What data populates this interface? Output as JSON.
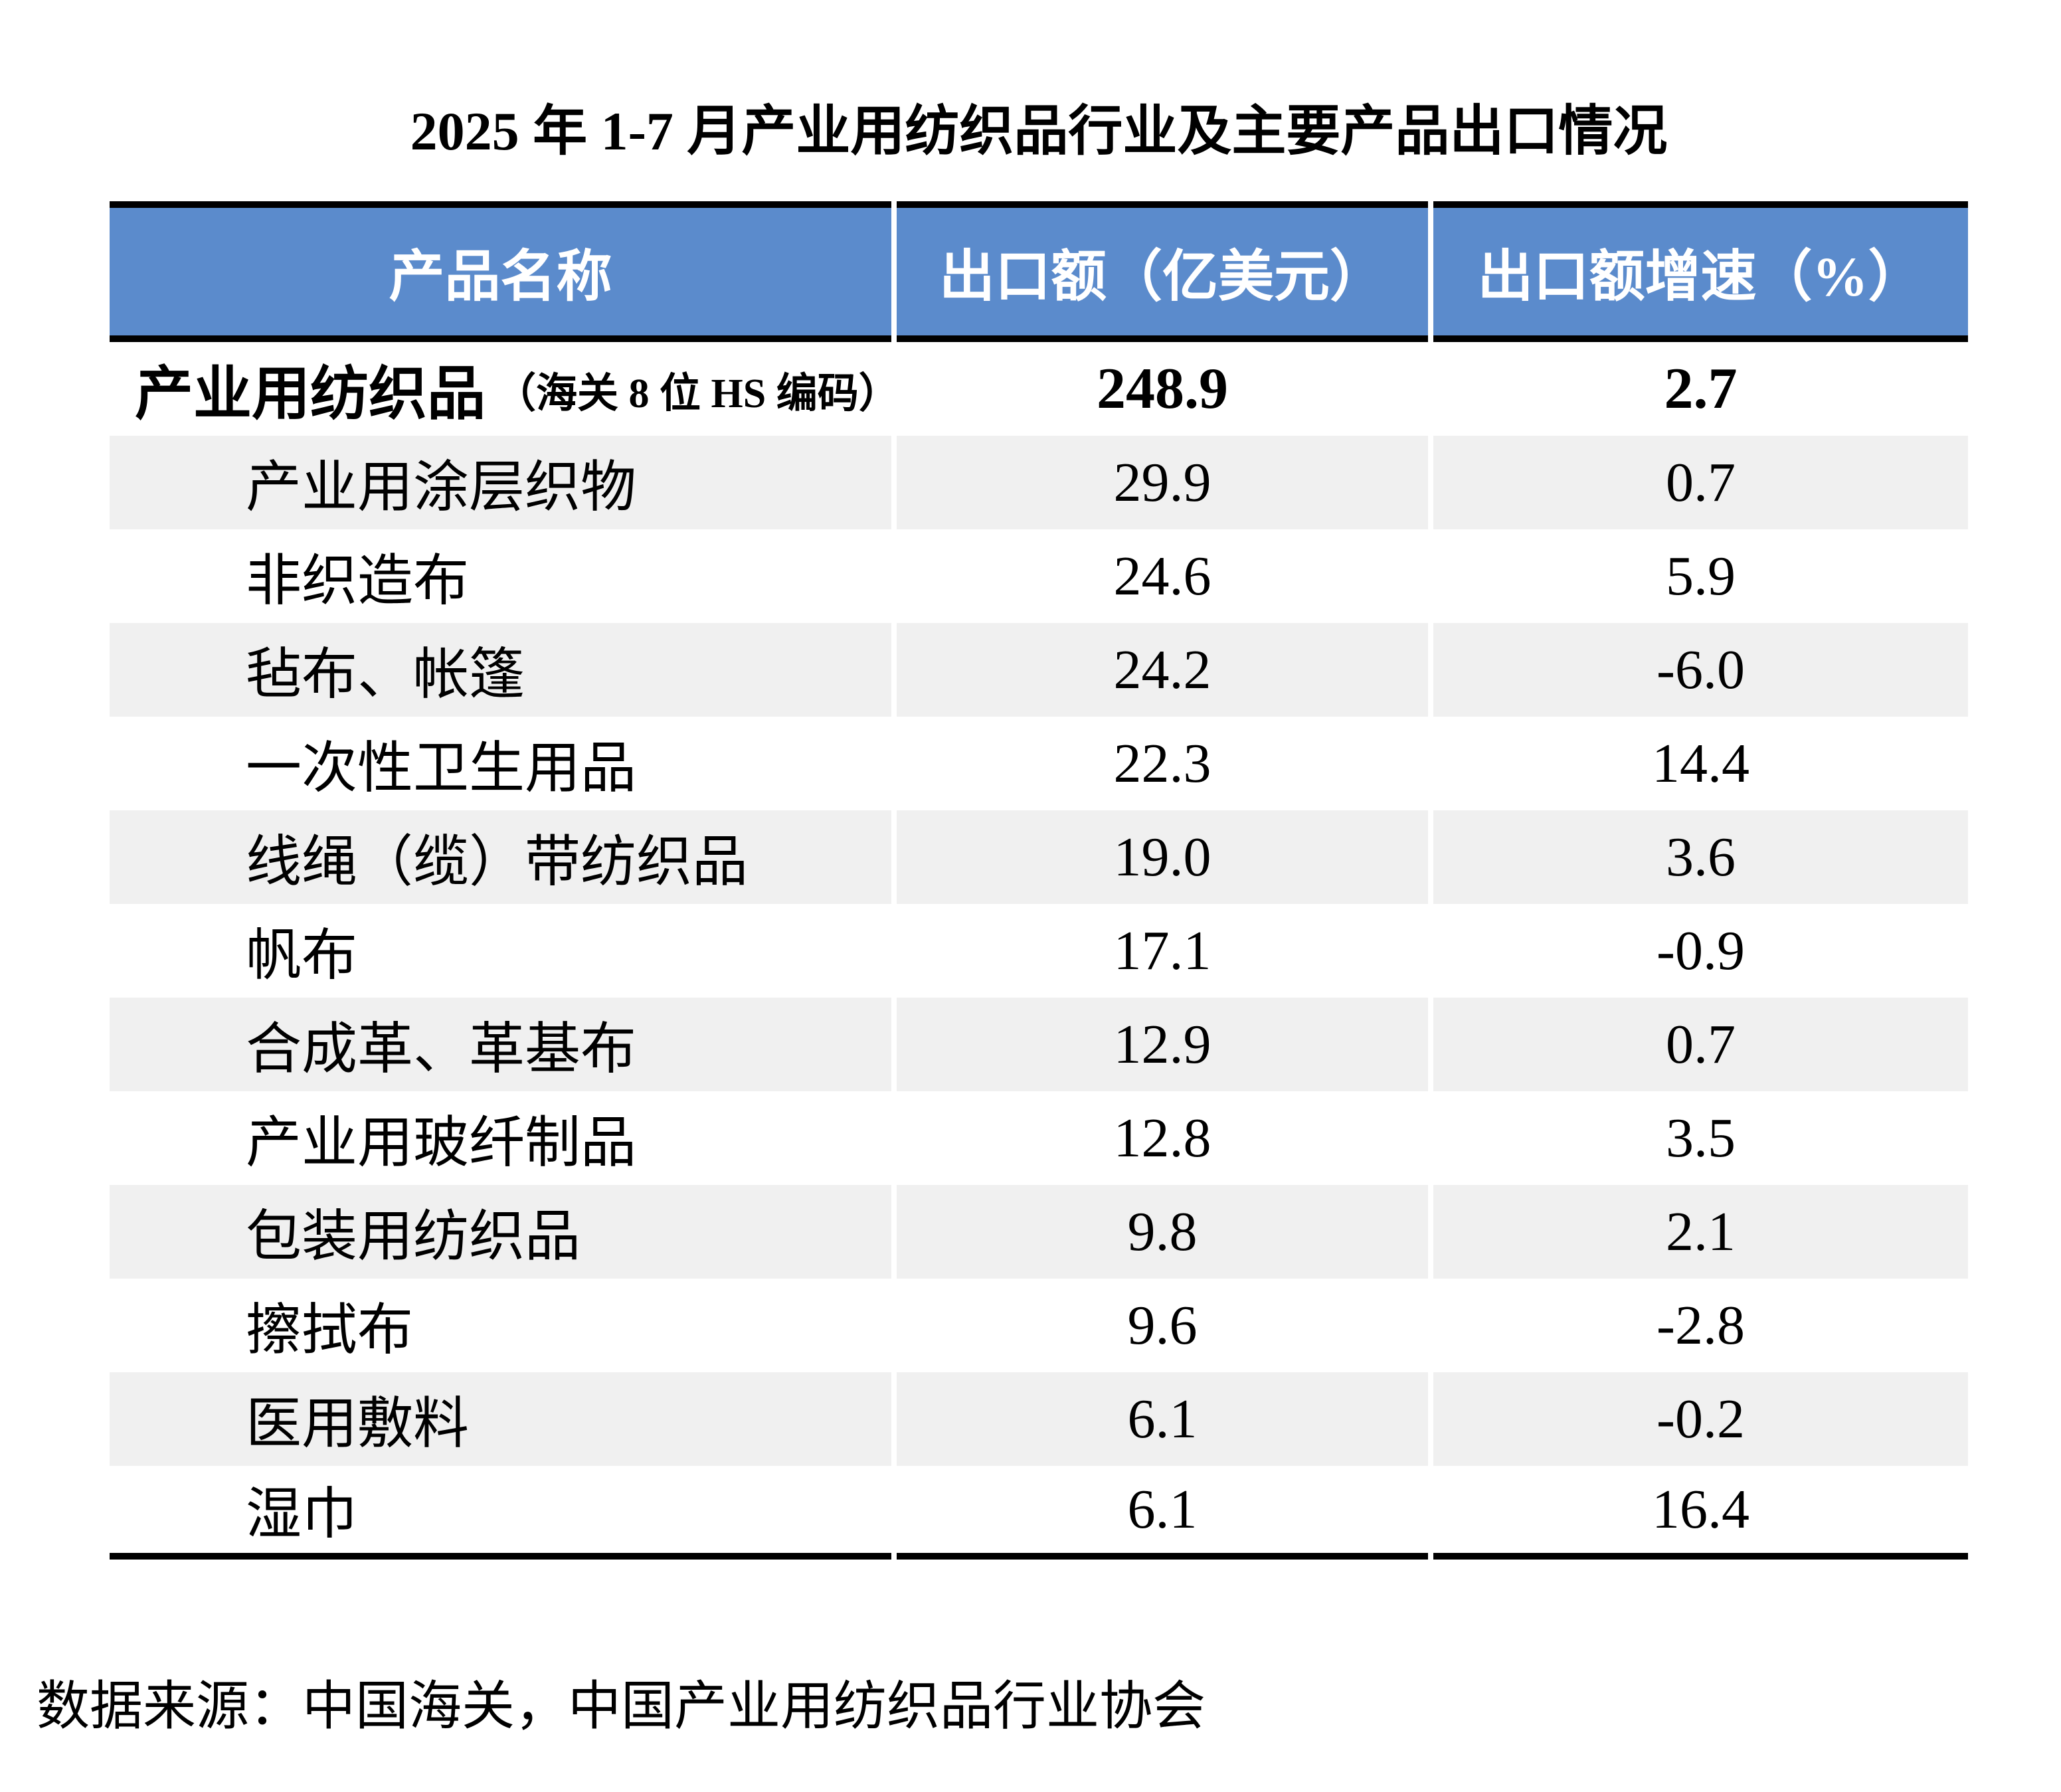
{
  "title": "2025 年 1-7 月产业用纺织品行业及主要产品出口情况",
  "table": {
    "columns": [
      "产品名称",
      "出口额（亿美元）",
      "出口额增速（%）"
    ],
    "rows": [
      {
        "level": 0,
        "name": "产业用纺织品",
        "note": "（海关 8 位 HS 编码）",
        "export_value": "248.9",
        "growth_pct": "2.7"
      },
      {
        "level": 1,
        "name": "产业用涂层织物",
        "export_value": "29.9",
        "growth_pct": "0.7"
      },
      {
        "level": 1,
        "name": "非织造布",
        "export_value": "24.6",
        "growth_pct": "5.9"
      },
      {
        "level": 1,
        "name": "毡布、帐篷",
        "export_value": "24.2",
        "growth_pct": "-6.0"
      },
      {
        "level": 1,
        "name": "一次性卫生用品",
        "export_value": "22.3",
        "growth_pct": "14.4"
      },
      {
        "level": 1,
        "name": "线绳（缆）带纺织品",
        "export_value": "19.0",
        "growth_pct": "3.6"
      },
      {
        "level": 1,
        "name": "帆布",
        "export_value": "17.1",
        "growth_pct": "-0.9"
      },
      {
        "level": 1,
        "name": "合成革、革基布",
        "export_value": "12.9",
        "growth_pct": "0.7"
      },
      {
        "level": 1,
        "name": "产业用玻纤制品",
        "export_value": "12.8",
        "growth_pct": "3.5"
      },
      {
        "level": 1,
        "name": "包装用纺织品",
        "export_value": "9.8",
        "growth_pct": "2.1"
      },
      {
        "level": 1,
        "name": "擦拭布",
        "export_value": "9.6",
        "growth_pct": "-2.8"
      },
      {
        "level": 1,
        "name": "医用敷料",
        "export_value": "6.1",
        "growth_pct": "-0.2"
      },
      {
        "level": 1,
        "name": "湿巾",
        "export_value": "6.1",
        "growth_pct": "16.4"
      }
    ]
  },
  "source": "数据来源：中国海关，中国产业用纺织品行业协会",
  "colors": {
    "header_bg": "#5B8BCC",
    "header_fg": "#FFFFFF",
    "row_alt_bg": "#F0F0F0",
    "border": "#000000",
    "text": "#000000"
  }
}
